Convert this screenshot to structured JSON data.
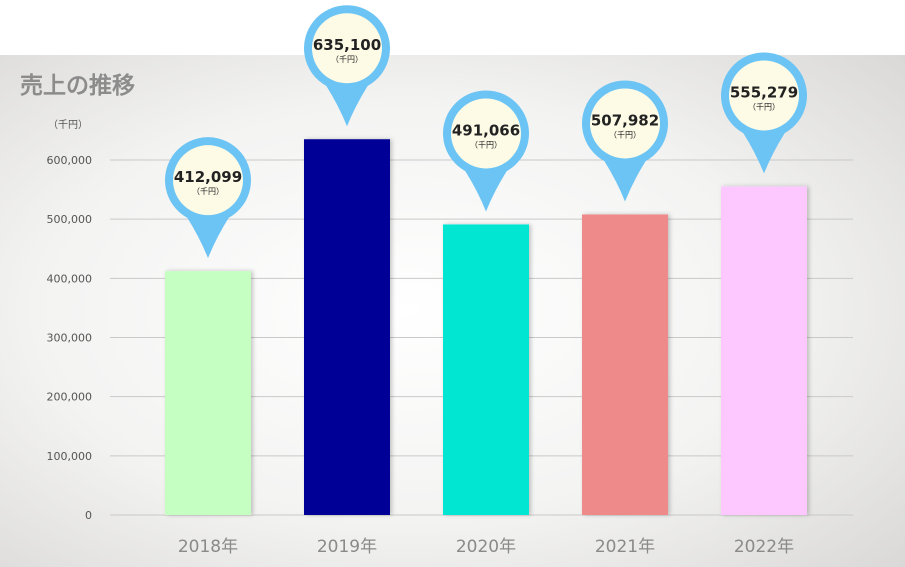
{
  "chart_data": {
    "type": "bar",
    "title": "売上の推移",
    "ylabel": "（千円）",
    "categories": [
      "2018年",
      "2019年",
      "2020年",
      "2021年",
      "2022年"
    ],
    "values": [
      412099,
      635100,
      491066,
      507982,
      555279
    ],
    "value_labels": [
      "412,099",
      "635,100",
      "491,066",
      "507,982",
      "555,279"
    ],
    "value_unit": "（千円）",
    "bar_colors": [
      "#c6ffc2",
      "#000096",
      "#00e6d2",
      "#ee8a8a",
      "#fcc8ff"
    ],
    "pin_color": "#6cc4f4",
    "pin_fill": "#fdfbe6",
    "ylim": [
      0,
      600000
    ],
    "yticks": [
      0,
      100000,
      200000,
      300000,
      400000,
      500000,
      600000
    ],
    "ytick_labels": [
      "0",
      "100,000",
      "200,000",
      "300,000",
      "400,000",
      "500,000",
      "600,000"
    ],
    "grid": true,
    "legend": "none"
  }
}
